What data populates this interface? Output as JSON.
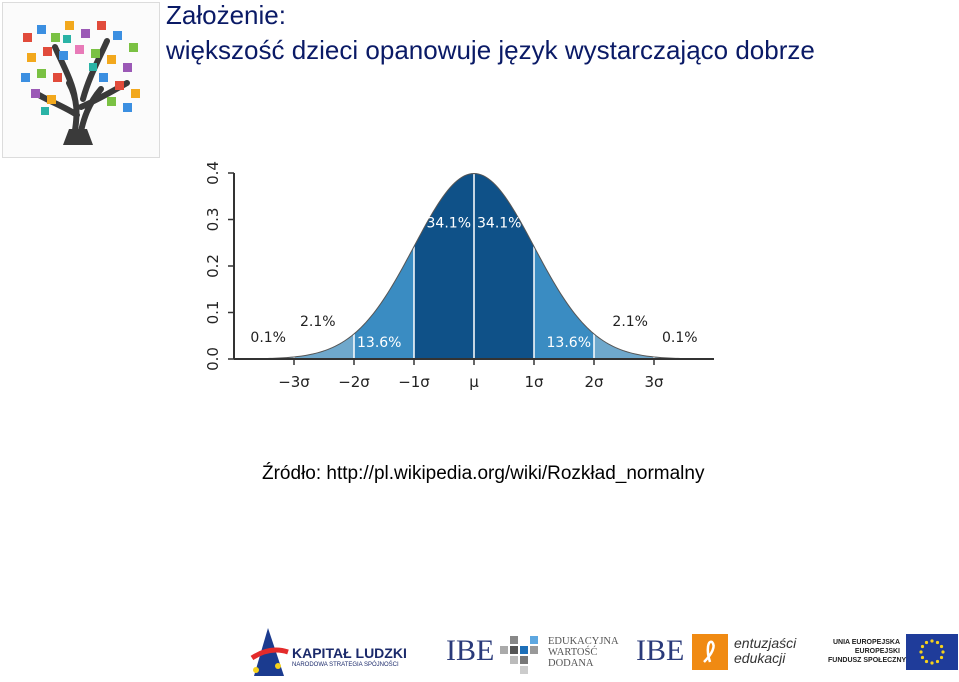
{
  "slide": {
    "title_line1": "Założenie:",
    "title_line2": "większość dzieci opanowuje język wystarczająco dobrze",
    "source": "Źródło: http://pl.wikipedia.org/wiki/Rozkład_normalny"
  },
  "chart_data": {
    "type": "area",
    "title": "",
    "xlabel": "",
    "ylabel": "",
    "ylim": [
      0,
      0.4
    ],
    "xlim": [
      -4,
      4
    ],
    "y_ticks": [
      "0.0",
      "0.1",
      "0.2",
      "0.3",
      "0.4"
    ],
    "x_ticks": [
      "−3σ",
      "−2σ",
      "−1σ",
      "μ",
      "1σ",
      "2σ",
      "3σ"
    ],
    "x_tick_values": [
      -3,
      -2,
      -1,
      0,
      1,
      2,
      3
    ],
    "grid": false,
    "regions": [
      {
        "from": -4,
        "to": -3,
        "percent": "0.1%",
        "color": "#8fbcd6"
      },
      {
        "from": -3,
        "to": -2,
        "percent": "2.1%",
        "color": "#6fa8cc"
      },
      {
        "from": -2,
        "to": -1,
        "percent": "13.6%",
        "color": "#3a8cc2"
      },
      {
        "from": -1,
        "to": 0,
        "percent": "34.1%",
        "color": "#0f5188"
      },
      {
        "from": 0,
        "to": 1,
        "percent": "34.1%",
        "color": "#0f5188"
      },
      {
        "from": 1,
        "to": 2,
        "percent": "13.6%",
        "color": "#3a8cc2"
      },
      {
        "from": 2,
        "to": 3,
        "percent": "2.1%",
        "color": "#6fa8cc"
      },
      {
        "from": 3,
        "to": 4,
        "percent": "0.1%",
        "color": "#8fbcd6"
      }
    ]
  },
  "footer": {
    "kapital_title": "KAPITAŁ LUDZKI",
    "kapital_sub": "NARODOWA STRATEGIA SPÓJNOŚCI",
    "ibe_label": "IBE",
    "ibe1_sub": "EDUKACYJNA\nWARTOŚĆ\nDODANA",
    "ibe2_label": "IBE",
    "ent_text": "entuzjaści\nedukacji",
    "ue_text": "UNIA EUROPEJSKA\nEUROPEJSKI\nFUNDUSZ SPOŁECZNY"
  }
}
